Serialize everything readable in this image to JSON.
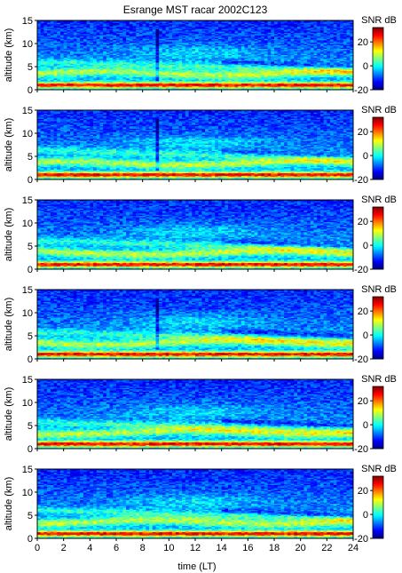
{
  "chart_data": {
    "type": "heatmap",
    "title": "Esrange MST racar 2002C123",
    "xlabel": "time (LT)",
    "ylabel": "altitude (km)",
    "colorbar_label": "SNR dB",
    "x_ticks": [
      "0",
      "2",
      "4",
      "6",
      "8",
      "10",
      "12",
      "14",
      "16",
      "18",
      "20",
      "22",
      "24"
    ],
    "y_ticks": [
      "0",
      "5",
      "10",
      "15"
    ],
    "colorbar_ticks": [
      "-20",
      "0",
      "20"
    ],
    "xlim": [
      0,
      24
    ],
    "ylim": [
      0,
      15
    ],
    "clim": [
      -20,
      32
    ],
    "colormap": "jet",
    "panel_count": 6,
    "panels": [
      {
        "index": 1,
        "features": "strong echo below 2 km, layer near 3-4 km, vertical streak near 9 LT"
      },
      {
        "index": 2,
        "features": "strong echo below 2 km, weaker layer near 3 km, vertical streak near 9 LT"
      },
      {
        "index": 3,
        "features": "strong echo below 2 km, descending layers after 14 LT"
      },
      {
        "index": 4,
        "features": "strong echo below 2 km, layer near 5 km, vertical streak near 9 LT"
      },
      {
        "index": 5,
        "features": "strong echo below 2 km, layers near 3 and 5 km"
      },
      {
        "index": 6,
        "features": "strong echo below 2 km, layer near 4 km"
      }
    ]
  }
}
